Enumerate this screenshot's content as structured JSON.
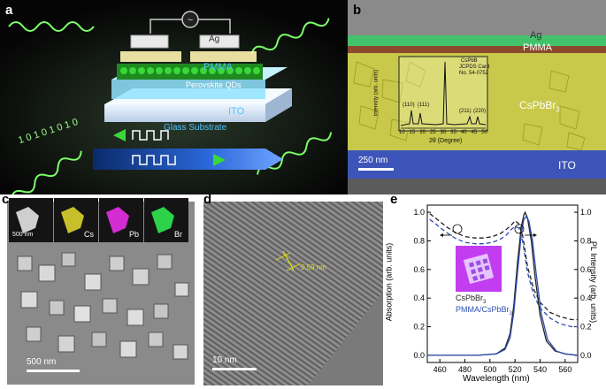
{
  "panel_a": {
    "label": "a",
    "layers": [
      "Ag",
      "PMMA",
      "Perovskite QDs",
      "ITO",
      "Glass Substrate"
    ],
    "top_contact": "Ag",
    "ac_symbol": "~",
    "binary_text": "1 0 1 0 1 0 1 0"
  },
  "panel_b": {
    "label": "b",
    "layers": [
      "Ag",
      "PMMA",
      "CsPbBr",
      "ITO"
    ],
    "cspbbr_subscript": "3",
    "scale_bar": "250 nm",
    "inset": {
      "legend_line1": "CsPbB",
      "legend_line2": "JCPDS Card",
      "legend_line3": "No. 54-0752",
      "peaks": [
        "(110)",
        "(111)",
        "(211)",
        "(220)"
      ],
      "ylabel": "Intensity (arb. units)",
      "xlabel": "2θ (Degree)",
      "xticks": [
        "10",
        "15",
        "20",
        "25",
        "30",
        "35",
        "40",
        "45",
        "50"
      ]
    }
  },
  "panel_c": {
    "label": "c",
    "maps": [
      "",
      "Cs",
      "Pb",
      "Br"
    ],
    "map_scale": "500 nm",
    "scale_bar": "500 nm"
  },
  "panel_d": {
    "label": "d",
    "spacing": "0.59 nm",
    "scale_bar": "10 nm"
  },
  "panel_e": {
    "label": "e",
    "legend_line1": "CsPbBr",
    "legend_line2": "PMMA/CsPbBr",
    "legend_sub": "3",
    "colors": {
      "black_series": "#222222",
      "blue_series": "#2f4fb0"
    }
  },
  "chart_data": {
    "type": "line",
    "xlabel": "Wavelength (nm)",
    "ylabel": "Absorption (arb. units)",
    "y2label": "PL Intensity (arb. units)",
    "xlim": [
      450,
      570
    ],
    "ylim": [
      -0.05,
      1.05
    ],
    "xticks": [
      460,
      480,
      500,
      520,
      540,
      560
    ],
    "yticks": [
      0.0,
      0.2,
      0.4,
      0.6,
      0.8,
      1.0
    ],
    "y2ticks": [
      0.0,
      0.2,
      0.4,
      0.6,
      0.8,
      1.0
    ],
    "series": [
      {
        "name": "CsPbBr3",
        "axis": "left",
        "style": "dashed",
        "color": "#222222",
        "x": [
          452,
          458,
          465,
          472,
          480,
          488,
          495,
          502,
          508,
          513,
          517,
          520,
          523,
          526,
          530,
          535,
          540,
          548,
          556,
          565,
          570
        ],
        "y": [
          0.99,
          0.95,
          0.9,
          0.86,
          0.83,
          0.82,
          0.82,
          0.83,
          0.85,
          0.88,
          0.91,
          0.94,
          0.92,
          0.84,
          0.62,
          0.46,
          0.37,
          0.3,
          0.27,
          0.25,
          0.25
        ]
      },
      {
        "name": "PMMA/CsPbBr3",
        "axis": "left",
        "style": "dashed",
        "color": "#2f4fb0",
        "x": [
          452,
          458,
          465,
          472,
          480,
          488,
          495,
          502,
          508,
          513,
          517,
          520,
          523,
          526,
          530,
          535,
          540,
          548,
          556,
          565,
          570
        ],
        "y": [
          0.95,
          0.91,
          0.86,
          0.82,
          0.79,
          0.78,
          0.78,
          0.79,
          0.81,
          0.84,
          0.88,
          0.9,
          0.89,
          0.8,
          0.58,
          0.42,
          0.33,
          0.26,
          0.22,
          0.2,
          0.2
        ]
      },
      {
        "name": "CsPbBr3",
        "axis": "right",
        "style": "solid",
        "color": "#222222",
        "x": [
          450,
          470,
          490,
          505,
          512,
          516,
          519,
          522,
          525,
          527,
          528,
          530,
          533,
          536,
          540,
          545,
          552,
          560,
          570
        ],
        "y": [
          0.0,
          0.0,
          0.0,
          0.01,
          0.05,
          0.15,
          0.35,
          0.65,
          0.9,
          0.98,
          1.0,
          0.96,
          0.8,
          0.55,
          0.28,
          0.1,
          0.03,
          0.01,
          0.0
        ]
      },
      {
        "name": "PMMA/CsPbBr3",
        "axis": "right",
        "style": "solid",
        "color": "#2f4fb0",
        "x": [
          450,
          470,
          490,
          505,
          512,
          516,
          519,
          522,
          525,
          527,
          529,
          531,
          534,
          537,
          541,
          546,
          553,
          560,
          570
        ],
        "y": [
          0.0,
          0.0,
          0.0,
          0.01,
          0.04,
          0.12,
          0.3,
          0.58,
          0.85,
          0.95,
          0.97,
          0.94,
          0.8,
          0.56,
          0.29,
          0.11,
          0.03,
          0.01,
          0.0
        ]
      }
    ]
  }
}
